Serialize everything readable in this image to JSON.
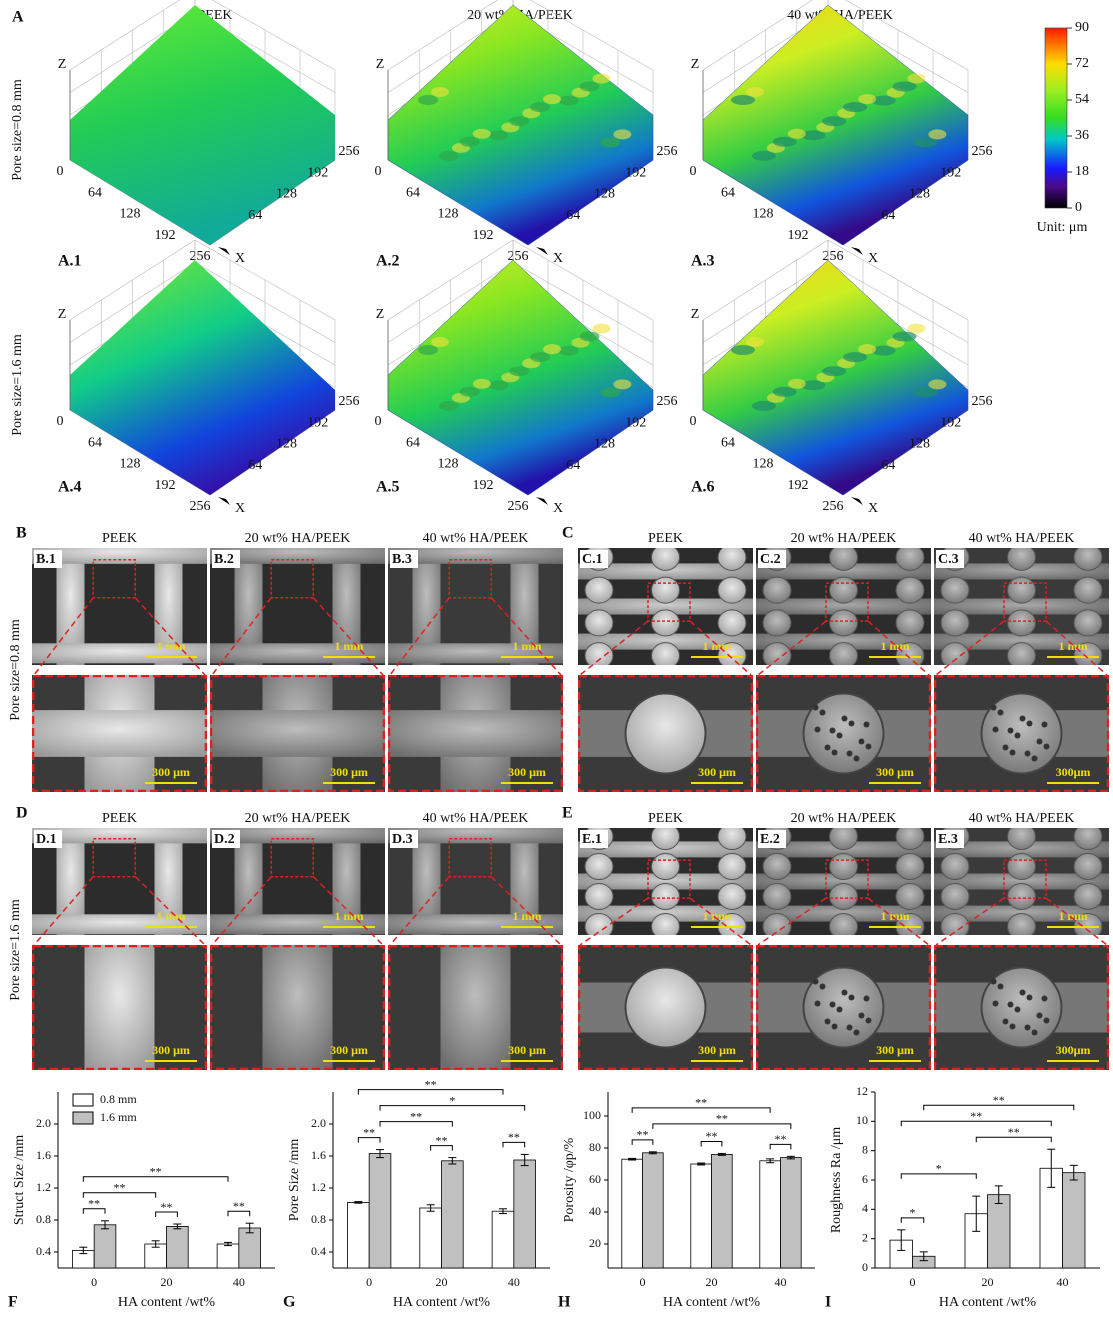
{
  "figure": {
    "panel_a": {
      "label": "A",
      "columns": [
        "PEEK",
        "20 wt% HA/PEEK",
        "40 wt% HA/PEEK"
      ],
      "rows": [
        "Pore size=0.8 mm",
        "Pore size=1.6 mm"
      ],
      "subpanels": [
        "A.1",
        "A.2",
        "A.3",
        "A.4",
        "A.5",
        "A.6"
      ],
      "axis_ticks": [
        0,
        64,
        128,
        192,
        256
      ],
      "x_axis": "X",
      "z_axis": "Z",
      "colorbar": {
        "lim": [
          0,
          90
        ],
        "ticks": [
          0,
          18,
          36,
          54,
          72,
          90
        ],
        "unit": "Unit: μm"
      }
    },
    "sem_rows": [
      "Pore size=0.8 mm",
      "Pore size=1.6 mm"
    ],
    "sem_panels": [
      {
        "label": "B",
        "columns": [
          "PEEK",
          "20 wt% HA/PEEK",
          "40 wt% HA/PEEK"
        ],
        "subpanels": [
          "B.1",
          "B.2",
          "B.3"
        ],
        "scale_bars": [
          [
            "1 mm",
            "300 μm"
          ],
          [
            "1 mm",
            "300 μm"
          ],
          [
            "1 mm",
            "300 μm"
          ]
        ]
      },
      {
        "label": "C",
        "columns": [
          "PEEK",
          "20 wt% HA/PEEK",
          "40 wt% HA/PEEK"
        ],
        "subpanels": [
          "C.1",
          "C.2",
          "C.3"
        ],
        "scale_bars": [
          [
            "1 mm",
            "300 μm"
          ],
          [
            "1 mm",
            "300 μm"
          ],
          [
            "1 mm",
            "300μm"
          ]
        ]
      },
      {
        "label": "D",
        "columns": [
          "PEEK",
          "20 wt% HA/PEEK",
          "40 wt% HA/PEEK"
        ],
        "subpanels": [
          "D.1",
          "D.2",
          "D.3"
        ],
        "scale_bars": [
          [
            "1 mm",
            "300 μm"
          ],
          [
            "1 mm",
            "300 μm"
          ],
          [
            "1 mm",
            "300 μm"
          ]
        ]
      },
      {
        "label": "E",
        "columns": [
          "PEEK",
          "20 wt% HA/PEEK",
          "40 wt% HA/PEEK"
        ],
        "subpanels": [
          "E.1",
          "E.2",
          "E.3"
        ],
        "scale_bars": [
          [
            "1 mm",
            "300 μm"
          ],
          [
            "1 mm",
            "300 μm"
          ],
          [
            "1 mm",
            "300μm"
          ]
        ]
      }
    ]
  },
  "chart_data": [
    {
      "type": "bar",
      "panel": "F",
      "ylabel": "Struct Size /mm",
      "xlabel": "HA content /wt%",
      "categories": [
        "0",
        "20",
        "40"
      ],
      "ylim": [
        0.2,
        2.4
      ],
      "yticks": [
        0.4,
        0.8,
        1.2,
        1.6,
        {
          "value": 2,
          "label": "2.0"
        }
      ],
      "legend": "upper left",
      "series": [
        {
          "name": "0.8 mm",
          "color": "#ffffff",
          "values": [
            0.42,
            0.5,
            0.5
          ],
          "errors": [
            0.04,
            0.04,
            0.02
          ]
        },
        {
          "name": "1.6 mm",
          "color": "#c0c0c0",
          "values": [
            0.74,
            0.72,
            0.7
          ],
          "errors": [
            0.05,
            0.03,
            0.06
          ]
        }
      ],
      "significance": [
        {
          "text": "**",
          "from": [
            0,
            0
          ],
          "to": [
            1,
            0
          ]
        },
        {
          "text": "**",
          "from": [
            0,
            1
          ],
          "to": [
            1,
            1
          ]
        },
        {
          "text": "**",
          "from": [
            0,
            2
          ],
          "to": [
            1,
            2
          ]
        },
        {
          "text": "**",
          "from": [
            0,
            0
          ],
          "to": [
            0,
            1
          ]
        },
        {
          "text": "**",
          "from": [
            0,
            0
          ],
          "to": [
            0,
            2
          ]
        }
      ]
    },
    {
      "type": "bar",
      "panel": "G",
      "ylabel": "Pore Size /mm",
      "xlabel": "HA content /wt%",
      "categories": [
        "0",
        "20",
        "40"
      ],
      "ylim": [
        0.2,
        2.4
      ],
      "yticks": [
        0.4,
        0.8,
        1.2,
        1.6,
        {
          "value": 2,
          "label": "2.0"
        }
      ],
      "series": [
        {
          "name": "0.8 mm",
          "color": "#ffffff",
          "values": [
            1.02,
            0.95,
            0.91
          ],
          "errors": [
            0.01,
            0.04,
            0.03
          ]
        },
        {
          "name": "1.6 mm",
          "color": "#c0c0c0",
          "values": [
            1.63,
            1.54,
            1.55
          ],
          "errors": [
            0.05,
            0.04,
            0.07
          ]
        }
      ],
      "significance": [
        {
          "text": "**",
          "from": [
            0,
            0
          ],
          "to": [
            1,
            0
          ]
        },
        {
          "text": "**",
          "from": [
            0,
            1
          ],
          "to": [
            1,
            1
          ]
        },
        {
          "text": "**",
          "from": [
            0,
            2
          ],
          "to": [
            1,
            2
          ]
        },
        {
          "text": "**",
          "from": [
            1,
            0
          ],
          "to": [
            1,
            1
          ]
        },
        {
          "text": "*",
          "from": [
            1,
            0
          ],
          "to": [
            1,
            2
          ]
        },
        {
          "text": "**",
          "from": [
            0,
            0
          ],
          "to": [
            0,
            2
          ]
        }
      ]
    },
    {
      "type": "bar",
      "panel": "H",
      "ylabel": "Porosity /φp/%",
      "xlabel": "HA content /wt%",
      "categories": [
        "0",
        "20",
        "40"
      ],
      "ylim": [
        5,
        115
      ],
      "yticks": [
        20,
        40,
        60,
        80,
        100
      ],
      "series": [
        {
          "name": "0.8 mm",
          "color": "#ffffff",
          "values": [
            73,
            70,
            72
          ],
          "errors": [
            0.5,
            0.6,
            1.2
          ]
        },
        {
          "name": "1.6 mm",
          "color": "#c0c0c0",
          "values": [
            77,
            76,
            74
          ],
          "errors": [
            0.6,
            0.6,
            0.8
          ]
        }
      ],
      "significance": [
        {
          "text": "**",
          "from": [
            0,
            0
          ],
          "to": [
            1,
            0
          ]
        },
        {
          "text": "**",
          "from": [
            0,
            1
          ],
          "to": [
            1,
            1
          ]
        },
        {
          "text": "**",
          "from": [
            0,
            2
          ],
          "to": [
            1,
            2
          ]
        },
        {
          "text": "**",
          "from": [
            1,
            0
          ],
          "to": [
            1,
            2
          ]
        },
        {
          "text": "**",
          "from": [
            0,
            0
          ],
          "to": [
            0,
            2
          ]
        }
      ]
    },
    {
      "type": "bar",
      "panel": "I",
      "ylabel": "Roughness Ra /μm",
      "xlabel": "HA content /wt%",
      "categories": [
        "0",
        "20",
        "40"
      ],
      "ylim": [
        0,
        12
      ],
      "yticks": [
        0,
        2,
        4,
        6,
        8,
        10,
        12
      ],
      "series": [
        {
          "name": "0.8 mm",
          "color": "#ffffff",
          "values": [
            1.9,
            3.7,
            6.8
          ],
          "errors": [
            0.7,
            1.2,
            1.3
          ]
        },
        {
          "name": "1.6 mm",
          "color": "#c0c0c0",
          "values": [
            0.8,
            5.0,
            6.5
          ],
          "errors": [
            0.3,
            0.6,
            0.5
          ]
        }
      ],
      "significance": [
        {
          "text": "*",
          "from": [
            0,
            0
          ],
          "to": [
            1,
            0
          ]
        },
        {
          "text": "*",
          "from": [
            0,
            0
          ],
          "to": [
            0,
            1
          ]
        },
        {
          "text": "**",
          "from": [
            0,
            1
          ],
          "to": [
            0,
            2
          ]
        },
        {
          "text": "**",
          "from": [
            0,
            0
          ],
          "to": [
            0,
            2
          ]
        },
        {
          "text": "**",
          "from": [
            1,
            0
          ],
          "to": [
            1,
            2
          ]
        }
      ]
    }
  ]
}
